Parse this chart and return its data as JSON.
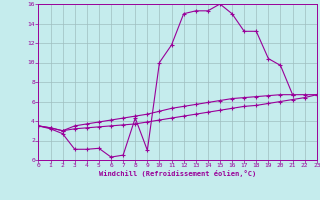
{
  "xlabel": "Windchill (Refroidissement éolien,°C)",
  "bg_color": "#c5eced",
  "line_color": "#990099",
  "grid_color": "#9fbfc0",
  "xlim": [
    0,
    23
  ],
  "ylim": [
    0,
    16
  ],
  "xticks": [
    0,
    1,
    2,
    3,
    4,
    5,
    6,
    7,
    8,
    9,
    10,
    11,
    12,
    13,
    14,
    15,
    16,
    17,
    18,
    19,
    20,
    21,
    22,
    23
  ],
  "yticks": [
    0,
    2,
    4,
    6,
    8,
    10,
    12,
    14,
    16
  ],
  "curve1_x": [
    0,
    1,
    2,
    3,
    4,
    5,
    6,
    7,
    8,
    9,
    10,
    11,
    12,
    13,
    14,
    15,
    16,
    17,
    18,
    19,
    20,
    21
  ],
  "curve1_y": [
    3.5,
    3.2,
    2.7,
    1.1,
    1.1,
    1.2,
    0.3,
    0.5,
    4.3,
    1.0,
    10.0,
    11.8,
    15.0,
    15.3,
    15.3,
    16.0,
    15.0,
    13.2,
    13.2,
    10.4,
    9.7,
    6.7
  ],
  "curve2_x": [
    0,
    1,
    2,
    3,
    4,
    5,
    6,
    7,
    8,
    9,
    10,
    11,
    12,
    13,
    14,
    15,
    16,
    17,
    18,
    19,
    20,
    21,
    22,
    23
  ],
  "curve2_y": [
    3.5,
    3.3,
    3.0,
    3.5,
    3.7,
    3.9,
    4.1,
    4.3,
    4.5,
    4.7,
    5.0,
    5.3,
    5.5,
    5.7,
    5.9,
    6.1,
    6.3,
    6.4,
    6.5,
    6.6,
    6.7,
    6.7,
    6.7,
    6.7
  ],
  "curve3_x": [
    0,
    1,
    2,
    3,
    4,
    5,
    6,
    7,
    8,
    9,
    10,
    11,
    12,
    13,
    14,
    15,
    16,
    17,
    18,
    19,
    20,
    21,
    22,
    23
  ],
  "curve3_y": [
    3.5,
    3.3,
    3.0,
    3.2,
    3.3,
    3.4,
    3.5,
    3.6,
    3.7,
    3.9,
    4.1,
    4.3,
    4.5,
    4.7,
    4.9,
    5.1,
    5.3,
    5.5,
    5.6,
    5.8,
    6.0,
    6.2,
    6.4,
    6.7
  ]
}
